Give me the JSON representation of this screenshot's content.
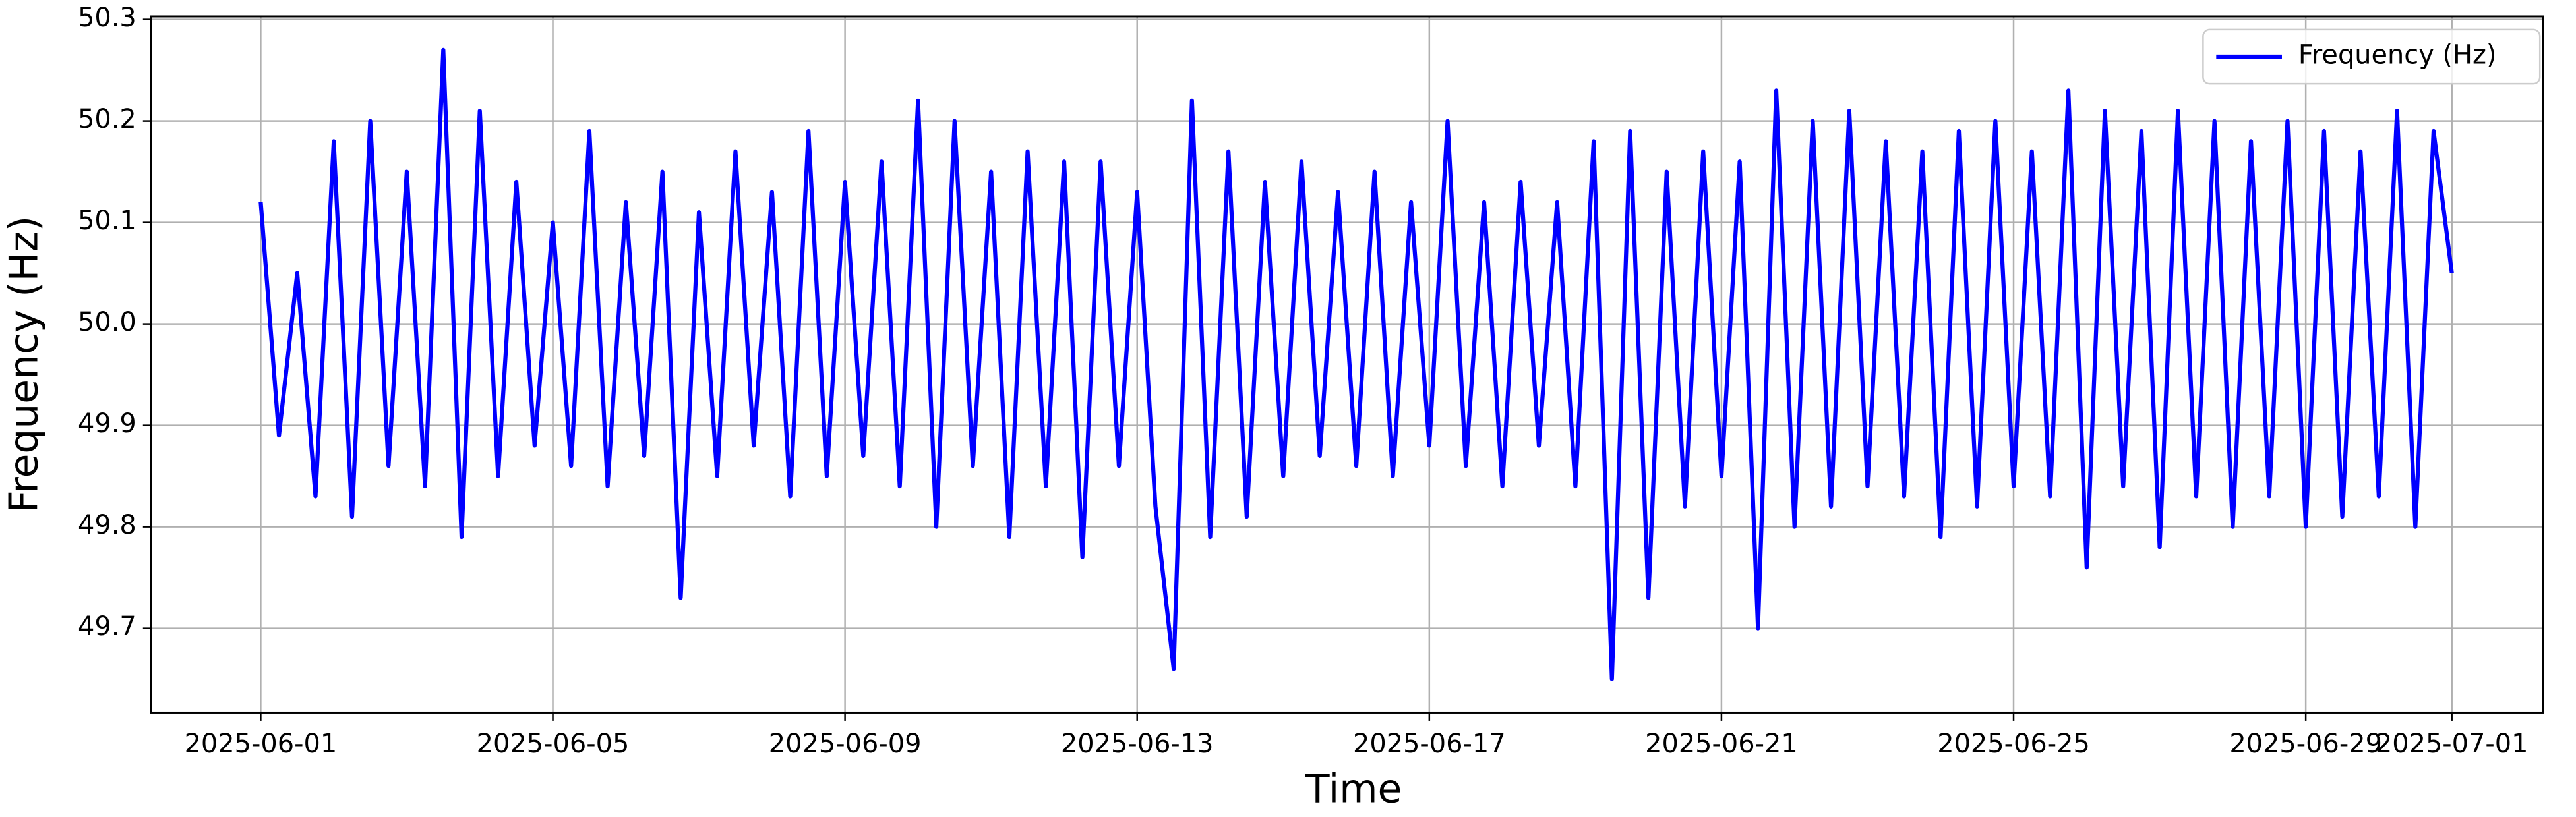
{
  "chart_data": {
    "type": "line",
    "xlabel": "Time",
    "ylabel": "Frequency (Hz)",
    "x": [
      0,
      0.25,
      0.5,
      0.75,
      1,
      1.25,
      1.5,
      1.75,
      2,
      2.25,
      2.5,
      2.75,
      3,
      3.25,
      3.5,
      3.75,
      4,
      4.25,
      4.5,
      4.75,
      5,
      5.25,
      5.5,
      5.75,
      6,
      6.25,
      6.5,
      6.75,
      7,
      7.25,
      7.5,
      7.75,
      8,
      8.25,
      8.5,
      8.75,
      9,
      9.25,
      9.5,
      9.75,
      10,
      10.25,
      10.5,
      10.75,
      11,
      11.25,
      11.5,
      11.75,
      12,
      12.25,
      12.5,
      12.75,
      13,
      13.25,
      13.5,
      13.75,
      14,
      14.25,
      14.5,
      14.75,
      15,
      15.25,
      15.5,
      15.75,
      16,
      16.25,
      16.5,
      16.75,
      17,
      17.25,
      17.5,
      17.75,
      18,
      18.25,
      18.5,
      18.75,
      19,
      19.25,
      19.5,
      19.75,
      20,
      20.25,
      20.5,
      20.75,
      21,
      21.25,
      21.5,
      21.75,
      22,
      22.25,
      22.5,
      22.75,
      23,
      23.25,
      23.5,
      23.75,
      24,
      24.25,
      24.5,
      24.75,
      25,
      25.25,
      25.5,
      25.75,
      26,
      26.25,
      26.5,
      26.75,
      27,
      27.25,
      27.5,
      27.75,
      28,
      28.25,
      28.5,
      28.75,
      29,
      29.25,
      29.5,
      29.75,
      30
    ],
    "series": [
      {
        "name": "Frequency (Hz)",
        "color": "#0000ff",
        "values": [
          50.12,
          49.89,
          50.05,
          49.83,
          50.18,
          49.81,
          50.2,
          49.86,
          50.15,
          49.84,
          50.27,
          49.79,
          50.21,
          49.85,
          50.14,
          49.88,
          50.1,
          49.86,
          50.19,
          49.84,
          50.12,
          49.87,
          50.15,
          49.73,
          50.11,
          49.85,
          50.17,
          49.88,
          50.13,
          49.83,
          50.19,
          49.85,
          50.14,
          49.87,
          50.16,
          49.84,
          50.22,
          49.8,
          50.2,
          49.86,
          50.15,
          49.79,
          50.17,
          49.84,
          50.16,
          49.77,
          50.16,
          49.86,
          50.13,
          49.82,
          49.66,
          50.22,
          49.79,
          50.17,
          49.81,
          50.14,
          49.85,
          50.16,
          49.87,
          50.13,
          49.86,
          50.15,
          49.85,
          50.12,
          49.88,
          50.2,
          49.86,
          50.12,
          49.84,
          50.14,
          49.88,
          50.12,
          49.84,
          50.18,
          49.65,
          50.19,
          49.73,
          50.15,
          49.82,
          50.17,
          49.85,
          50.16,
          49.7,
          50.23,
          49.8,
          50.2,
          49.82,
          50.21,
          49.84,
          50.18,
          49.83,
          50.17,
          49.79,
          50.19,
          49.82,
          50.2,
          49.84,
          50.17,
          49.83,
          50.23,
          49.76,
          50.21,
          49.84,
          50.19,
          49.78,
          50.21,
          49.83,
          50.2,
          49.8,
          50.18,
          49.83,
          50.2,
          49.8,
          50.19,
          49.81,
          50.17,
          49.83,
          50.21,
          49.8,
          50.19,
          50.05
        ]
      }
    ],
    "xlim": [
      -1.5,
      31.25
    ],
    "xticks": [
      {
        "value": 0,
        "label": "2025-06-01"
      },
      {
        "value": 4,
        "label": "2025-06-05"
      },
      {
        "value": 8,
        "label": "2025-06-09"
      },
      {
        "value": 12,
        "label": "2025-06-13"
      },
      {
        "value": 16,
        "label": "2025-06-17"
      },
      {
        "value": 20,
        "label": "2025-06-21"
      },
      {
        "value": 24,
        "label": "2025-06-25"
      },
      {
        "value": 28,
        "label": "2025-06-29"
      },
      {
        "value": 30,
        "label": "2025-07-01"
      }
    ],
    "ylim": [
      49.617,
      50.303
    ],
    "yticks": [
      49.7,
      49.8,
      49.9,
      {
        "value": 50,
        "label": "50.0"
      },
      50.1,
      50.2,
      50.3
    ],
    "grid": true,
    "legend": "upper right"
  }
}
